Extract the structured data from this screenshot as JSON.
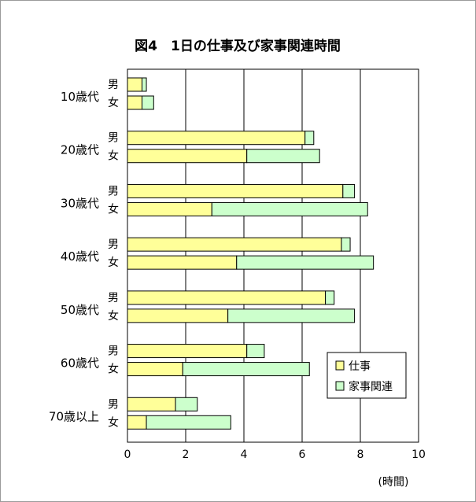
{
  "chart_data": {
    "type": "bar",
    "orientation": "horizontal",
    "stacked": true,
    "title": "図4　1日の仕事及び家事関連時間",
    "unit_label": "(時間)",
    "xlim": [
      0,
      10
    ],
    "xticks": [
      0,
      2,
      4,
      6,
      8,
      10
    ],
    "grid": true,
    "legend_position": "bottom-right",
    "groups": [
      "10歳代",
      "20歳代",
      "30歳代",
      "40歳代",
      "50歳代",
      "60歳代",
      "70歳以上"
    ],
    "subgroups": [
      "男",
      "女"
    ],
    "categories": [
      "10歳代 男",
      "10歳代 女",
      "20歳代 男",
      "20歳代 女",
      "30歳代 男",
      "30歳代 女",
      "40歳代 男",
      "40歳代 女",
      "50歳代 男",
      "50歳代 女",
      "60歳代 男",
      "60歳代 女",
      "70歳以上 男",
      "70歳以上 女"
    ],
    "series": [
      {
        "name": "仕事",
        "color": "#FFFF99",
        "values": [
          0.5,
          0.5,
          6.1,
          4.1,
          7.4,
          2.9,
          7.35,
          3.75,
          6.8,
          3.45,
          4.1,
          1.9,
          1.65,
          0.65
        ]
      },
      {
        "name": "家事関連",
        "color": "#CCFFCC",
        "values": [
          0.15,
          0.4,
          0.3,
          2.5,
          0.4,
          5.35,
          0.3,
          4.7,
          0.3,
          4.35,
          0.6,
          4.35,
          0.75,
          2.9
        ]
      }
    ]
  }
}
